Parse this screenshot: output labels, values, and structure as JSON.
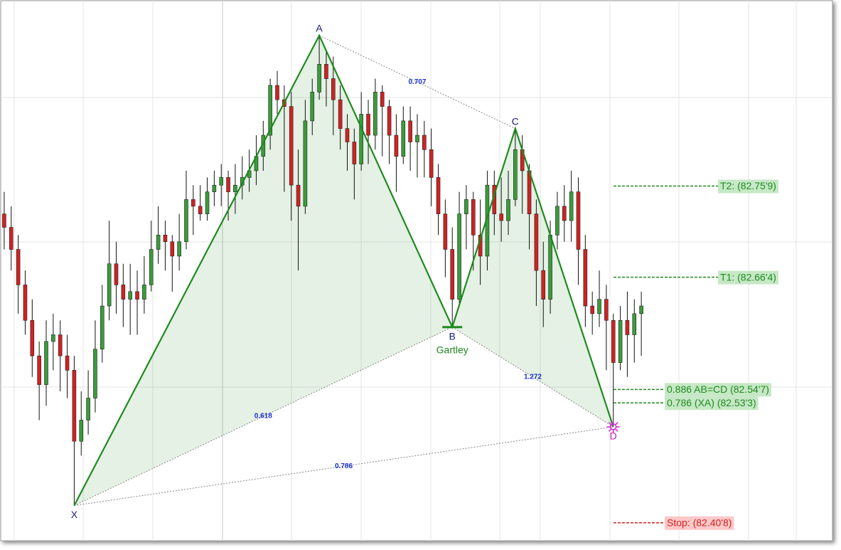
{
  "chart_data": {
    "type": "candlestick",
    "xlim": [
      -0.6,
      118.2
    ],
    "ylim": [
      82.39,
      82.953
    ],
    "up_color": "#3a9c3a",
    "down_color": "#d02222",
    "candles": [
      [
        82.73,
        82.753,
        82.693,
        82.716
      ],
      [
        82.716,
        82.738,
        82.671,
        82.693
      ],
      [
        82.693,
        82.708,
        82.626,
        82.656
      ],
      [
        82.656,
        82.671,
        82.604,
        82.619
      ],
      [
        82.619,
        82.641,
        82.56,
        82.582
      ],
      [
        82.582,
        82.597,
        82.515,
        82.552
      ],
      [
        82.552,
        82.619,
        82.53,
        82.597
      ],
      [
        82.597,
        82.626,
        82.567,
        82.604
      ],
      [
        82.604,
        82.619,
        82.545,
        82.582
      ],
      [
        82.582,
        82.604,
        82.538,
        82.567
      ],
      [
        82.567,
        82.582,
        82.426,
        82.493
      ],
      [
        82.493,
        82.545,
        82.478,
        82.515
      ],
      [
        82.515,
        82.567,
        82.5,
        82.538
      ],
      [
        82.538,
        82.619,
        82.523,
        82.589
      ],
      [
        82.589,
        82.656,
        82.575,
        82.634
      ],
      [
        82.634,
        82.723,
        82.619,
        82.678
      ],
      [
        82.678,
        82.701,
        82.626,
        82.656
      ],
      [
        82.656,
        82.678,
        82.612,
        82.641
      ],
      [
        82.641,
        82.678,
        82.604,
        82.649
      ],
      [
        82.649,
        82.671,
        82.604,
        82.641
      ],
      [
        82.641,
        82.686,
        82.626,
        82.656
      ],
      [
        82.656,
        82.723,
        82.649,
        82.693
      ],
      [
        82.693,
        82.738,
        82.678,
        82.708
      ],
      [
        82.708,
        82.723,
        82.671,
        82.701
      ],
      [
        82.701,
        82.708,
        82.649,
        82.686
      ],
      [
        82.686,
        82.73,
        82.671,
        82.701
      ],
      [
        82.701,
        82.775,
        82.693,
        82.745
      ],
      [
        82.745,
        82.76,
        82.708,
        82.738
      ],
      [
        82.738,
        82.76,
        82.723,
        82.73
      ],
      [
        82.73,
        82.768,
        82.723,
        82.753
      ],
      [
        82.753,
        82.775,
        82.738,
        82.76
      ],
      [
        82.76,
        82.782,
        82.738,
        82.768
      ],
      [
        82.768,
        82.775,
        82.723,
        82.753
      ],
      [
        82.753,
        82.782,
        82.73,
        82.76
      ],
      [
        82.76,
        82.79,
        82.745,
        82.768
      ],
      [
        82.768,
        82.797,
        82.753,
        82.775
      ],
      [
        82.775,
        82.812,
        82.76,
        82.79
      ],
      [
        82.79,
        82.827,
        82.775,
        82.812
      ],
      [
        82.812,
        82.871,
        82.797,
        82.864
      ],
      [
        82.864,
        82.879,
        82.834,
        82.849
      ],
      [
        82.849,
        82.864,
        82.753,
        82.842
      ],
      [
        82.842,
        82.857,
        82.723,
        82.76
      ],
      [
        82.76,
        82.797,
        82.671,
        82.738
      ],
      [
        82.738,
        82.849,
        82.73,
        82.827
      ],
      [
        82.827,
        82.871,
        82.812,
        82.857
      ],
      [
        82.857,
        82.916,
        82.849,
        82.886
      ],
      [
        82.886,
        82.901,
        82.842,
        82.871
      ],
      [
        82.871,
        82.894,
        82.812,
        82.849
      ],
      [
        82.849,
        82.864,
        82.797,
        82.819
      ],
      [
        82.819,
        82.834,
        82.775,
        82.805
      ],
      [
        82.805,
        82.819,
        82.745,
        82.782
      ],
      [
        82.782,
        82.857,
        82.775,
        82.834
      ],
      [
        82.834,
        82.849,
        82.782,
        82.812
      ],
      [
        82.812,
        82.871,
        82.797,
        82.857
      ],
      [
        82.857,
        82.864,
        82.79,
        82.842
      ],
      [
        82.842,
        82.849,
        82.782,
        82.812
      ],
      [
        82.812,
        82.834,
        82.753,
        82.79
      ],
      [
        82.79,
        82.842,
        82.782,
        82.827
      ],
      [
        82.827,
        82.842,
        82.775,
        82.805
      ],
      [
        82.805,
        82.834,
        82.768,
        82.812
      ],
      [
        82.812,
        82.827,
        82.768,
        82.797
      ],
      [
        82.797,
        82.819,
        82.738,
        82.768
      ],
      [
        82.768,
        82.782,
        82.708,
        82.73
      ],
      [
        82.73,
        82.745,
        82.664,
        82.693
      ],
      [
        82.693,
        82.716,
        82.612,
        82.641
      ],
      [
        82.641,
        82.753,
        82.634,
        82.73
      ],
      [
        82.73,
        82.76,
        82.693,
        82.745
      ],
      [
        82.745,
        82.753,
        82.671,
        82.708
      ],
      [
        82.708,
        82.745,
        82.656,
        82.686
      ],
      [
        82.686,
        82.775,
        82.671,
        82.76
      ],
      [
        82.76,
        82.775,
        82.708,
        82.73
      ],
      [
        82.73,
        82.768,
        82.701,
        82.723
      ],
      [
        82.723,
        82.775,
        82.708,
        82.745
      ],
      [
        82.745,
        82.819,
        82.738,
        82.797
      ],
      [
        82.797,
        82.812,
        82.73,
        82.775
      ],
      [
        82.775,
        82.782,
        82.693,
        82.73
      ],
      [
        82.73,
        82.745,
        82.634,
        82.671
      ],
      [
        82.671,
        82.701,
        82.612,
        82.641
      ],
      [
        82.641,
        82.723,
        82.626,
        82.708
      ],
      [
        82.708,
        82.753,
        82.693,
        82.738
      ],
      [
        82.738,
        82.76,
        82.701,
        82.723
      ],
      [
        82.723,
        82.775,
        82.701,
        82.753
      ],
      [
        82.753,
        82.768,
        82.656,
        82.693
      ],
      [
        82.693,
        82.708,
        82.612,
        82.634
      ],
      [
        82.634,
        82.649,
        82.604,
        82.626
      ],
      [
        82.626,
        82.671,
        82.612,
        82.641
      ],
      [
        82.641,
        82.656,
        82.567,
        82.619
      ],
      [
        82.619,
        82.626,
        82.508,
        82.575
      ],
      [
        82.575,
        82.634,
        82.567,
        82.619
      ],
      [
        82.619,
        82.649,
        82.56,
        82.604
      ],
      [
        82.604,
        82.641,
        82.575,
        82.626
      ],
      [
        82.626,
        82.649,
        82.582,
        82.634
      ]
    ],
    "pattern": {
      "name": "Gartley",
      "color": "#1f8a1f",
      "points": [
        {
          "label": "X",
          "x": 10,
          "y": 82.426
        },
        {
          "label": "A",
          "x": 45,
          "y": 82.916
        },
        {
          "label": "B",
          "x": 64,
          "y": 82.612
        },
        {
          "label": "C",
          "x": 73,
          "y": 82.819
        },
        {
          "label": "D",
          "x": 87,
          "y": 82.508
        }
      ]
    },
    "ratios": [
      0.707,
      0.618,
      1.272,
      0.786
    ],
    "levels": [
      {
        "label": "T2: (82.75'9)",
        "value": 82.759,
        "color": "#1f8a1f"
      },
      {
        "label": "T1: (82.66'4)",
        "value": 82.664,
        "color": "#1f8a1f"
      },
      {
        "label": "0.886 AB=CD (82.54'7)",
        "value": 82.547,
        "color": "#1f8a1f"
      },
      {
        "label": "0.786 (XA) (82.53'3)",
        "value": 82.533,
        "color": "#1f8a1f"
      },
      {
        "label": "Stop: (82.40'8)",
        "value": 82.408,
        "color": "#d02222"
      }
    ]
  }
}
